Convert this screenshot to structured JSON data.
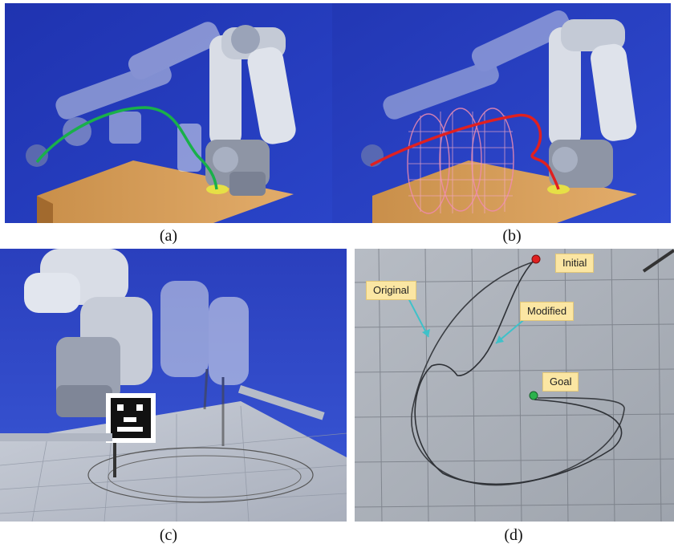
{
  "figure": {
    "captions": {
      "a": "(a)",
      "b": "(b)",
      "c": "(c)",
      "d": "(d)"
    },
    "annotations": {
      "initial": "Initial",
      "original": "Original",
      "modified": "Modified",
      "goal": "Goal"
    },
    "marker_colors": {
      "initial": "#e02020",
      "goal": "#2bb24c",
      "arrow": "#3fc1c9",
      "trajectory_a": "#19b04a",
      "trajectory_b": "#e02020"
    }
  }
}
